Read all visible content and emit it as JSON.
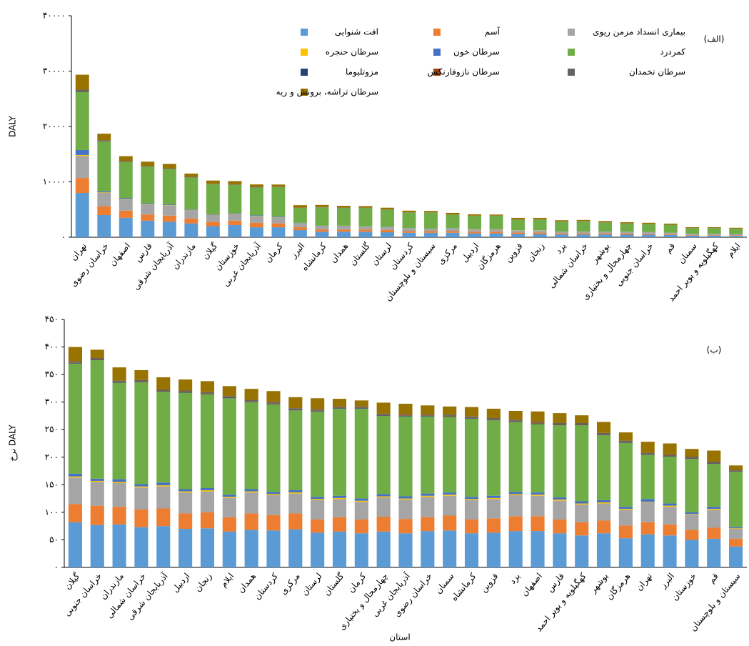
{
  "chart_data": [
    {
      "type": "stacked_bar",
      "annotation": "(الف)",
      "ylabel": "DALY",
      "categories": [
        "تهران",
        "خراسان رضوی",
        "اصفهان",
        "فارس",
        "آذربایجان شرقی",
        "مازندران",
        "گیلان",
        "خوزستان",
        "آذربایجان غربی",
        "کرمان",
        "البرز",
        "کرمانشاه",
        "همدان",
        "گلستان",
        "لرستان",
        "کردستان",
        "سیستان و بلوچستان",
        "مرکزی",
        "اردبیل",
        "هرمزگان",
        "قزوین",
        "زنجان",
        "یزد",
        "خراسان شمالی",
        "بوشهر",
        "چهارمحال و بختیاری",
        "خراسان جنوبی",
        "قم",
        "سمنان",
        "کهگیلویه و بویر احمد",
        "ایلام"
      ],
      "ylim": [
        0,
        40000
      ],
      "yticks": [
        {
          "value": 0,
          "label": "۰"
        },
        {
          "value": 10000,
          "label": "۱۰۰۰۰"
        },
        {
          "value": 20000,
          "label": "۲۰۰۰۰"
        },
        {
          "value": 30000,
          "label": "۳۰۰۰۰"
        },
        {
          "value": 40000,
          "label": "۴۰۰۰۰"
        }
      ],
      "grid": false,
      "series": [
        {
          "name": "افت شنوایی",
          "color": "#5B9BD5",
          "values": [
            8000,
            4000,
            3500,
            3000,
            2800,
            2500,
            2000,
            2200,
            1800,
            1800,
            1300,
            1000,
            1000,
            1000,
            900,
            800,
            800,
            800,
            700,
            700,
            600,
            600,
            500,
            500,
            500,
            450,
            450,
            400,
            300,
            300,
            250
          ]
        },
        {
          "name": "آسم",
          "color": "#ED7D31",
          "values": [
            2700,
            1600,
            1300,
            1100,
            1100,
            900,
            800,
            800,
            800,
            700,
            500,
            400,
            400,
            400,
            400,
            300,
            300,
            300,
            300,
            300,
            250,
            250,
            200,
            200,
            200,
            200,
            150,
            150,
            100,
            100,
            100
          ]
        },
        {
          "name": "بیماری انسداد مزمن ریوی",
          "color": "#A5A5A5",
          "values": [
            4000,
            2400,
            2000,
            1800,
            1800,
            1500,
            1200,
            1200,
            1200,
            1100,
            700,
            600,
            600,
            500,
            500,
            500,
            400,
            500,
            400,
            400,
            350,
            350,
            300,
            300,
            300,
            300,
            300,
            250,
            200,
            200,
            200
          ]
        },
        {
          "name": "سرطان حنجره",
          "color": "#FFC000",
          "values": [
            150,
            100,
            80,
            70,
            70,
            60,
            50,
            50,
            50,
            40,
            30,
            30,
            30,
            30,
            30,
            20,
            20,
            20,
            20,
            20,
            20,
            20,
            10,
            10,
            10,
            10,
            10,
            10,
            10,
            10,
            10
          ]
        },
        {
          "name": "سرطان خون",
          "color": "#4472C4",
          "values": [
            900,
            200,
            200,
            150,
            150,
            120,
            100,
            100,
            100,
            100,
            60,
            50,
            50,
            50,
            50,
            40,
            40,
            40,
            40,
            40,
            30,
            30,
            30,
            30,
            30,
            30,
            20,
            20,
            20,
            20,
            20
          ]
        },
        {
          "name": "کمردرد",
          "color": "#70AD47",
          "values": [
            10500,
            9000,
            6500,
            6600,
            6400,
            5700,
            5400,
            5100,
            5000,
            5300,
            2700,
            3300,
            3200,
            3300,
            3100,
            2800,
            2900,
            2400,
            2400,
            2400,
            1900,
            1950,
            1800,
            1850,
            1600,
            1500,
            1450,
            1400,
            1000,
            1000,
            950
          ]
        },
        {
          "name": "مزوتلیوما",
          "color": "#264478",
          "values": [
            100,
            50,
            40,
            30,
            30,
            30,
            20,
            20,
            20,
            20,
            10,
            10,
            10,
            10,
            10,
            10,
            10,
            10,
            10,
            10,
            10,
            10,
            10,
            10,
            10,
            10,
            10,
            10,
            10,
            10,
            10
          ]
        },
        {
          "name": "سرطان نازوفارنکس",
          "color": "#9E480E",
          "values": [
            100,
            50,
            40,
            30,
            30,
            30,
            20,
            20,
            20,
            20,
            10,
            10,
            10,
            10,
            10,
            10,
            10,
            10,
            10,
            10,
            10,
            10,
            10,
            10,
            10,
            10,
            10,
            10,
            10,
            10,
            10
          ]
        },
        {
          "name": "سرطان تخمدان",
          "color": "#636363",
          "values": [
            200,
            100,
            80,
            70,
            70,
            60,
            50,
            50,
            50,
            40,
            30,
            30,
            30,
            30,
            30,
            20,
            20,
            20,
            20,
            20,
            20,
            20,
            10,
            10,
            10,
            10,
            10,
            10,
            10,
            10,
            10
          ]
        },
        {
          "name": "سرطان تراشه، برونش و ریه",
          "color": "#997300",
          "values": [
            2700,
            1200,
            900,
            800,
            800,
            600,
            600,
            600,
            500,
            400,
            450,
            400,
            350,
            300,
            300,
            300,
            250,
            300,
            250,
            200,
            300,
            250,
            200,
            200,
            250,
            200,
            200,
            200,
            150,
            150,
            150
          ]
        }
      ]
    },
    {
      "type": "stacked_bar",
      "annotation": "(ب)",
      "ylabel": "نرخ DALY",
      "xlabel": "استان",
      "categories": [
        "گیلان",
        "خراسان جنوبی",
        "مازندران",
        "خراسان شمالی",
        "آذربایجان شرقی",
        "اردبیل",
        "زنجان",
        "ایلام",
        "همدان",
        "کردستان",
        "مرکزی",
        "لرستان",
        "گلستان",
        "کرمان",
        "چهارمحال و بختیاری",
        "آذربایجان غربی",
        "خراسان رضوی",
        "سمنان",
        "کرمانشاه",
        "قزوین",
        "یزد",
        "اصفهان",
        "فارس",
        "کهگیلویه و بویر احمد",
        "بوشهر",
        "هرمزگان",
        "تهران",
        "البرز",
        "خوزستان",
        "قم",
        "سیستان و بلوچستان"
      ],
      "ylim": [
        0,
        450
      ],
      "yticks": [
        {
          "value": 0,
          "label": "۰"
        },
        {
          "value": 50,
          "label": "۵۰"
        },
        {
          "value": 100,
          "label": "۱۰۰"
        },
        {
          "value": 150,
          "label": "۱۵۰"
        },
        {
          "value": 200,
          "label": "۲۰۰"
        },
        {
          "value": 250,
          "label": "۲۵۰"
        },
        {
          "value": 300,
          "label": "۳۰۰"
        },
        {
          "value": 350,
          "label": "۳۵۰"
        },
        {
          "value": 400,
          "label": "۴۰۰"
        },
        {
          "value": 450,
          "label": "۴۵۰"
        }
      ],
      "grid": false,
      "series": [
        {
          "color": "#5B9BD5",
          "values": [
            82,
            77,
            78,
            73,
            75,
            70,
            71,
            65,
            68,
            67,
            69,
            63,
            65,
            62,
            65,
            62,
            66,
            67,
            62,
            63,
            66,
            66,
            62,
            58,
            62,
            53,
            60,
            58,
            50,
            52,
            38
          ]
        },
        {
          "color": "#ED7D31",
          "values": [
            33,
            35,
            32,
            32,
            32,
            28,
            29,
            26,
            30,
            28,
            29,
            24,
            26,
            25,
            27,
            26,
            25,
            27,
            25,
            26,
            27,
            27,
            25,
            24,
            23,
            23,
            22,
            20,
            18,
            20,
            14
          ]
        },
        {
          "color": "#A5A5A5",
          "values": [
            48,
            43,
            43,
            40,
            40,
            38,
            38,
            35,
            38,
            36,
            36,
            35,
            33,
            32,
            35,
            35,
            37,
            36,
            35,
            35,
            38,
            37,
            34,
            32,
            31,
            28,
            36,
            32,
            28,
            32,
            18
          ]
        },
        {
          "color": "#FFC000",
          "values": [
            2,
            2,
            2,
            2,
            2,
            2,
            2,
            2,
            2,
            2,
            2,
            2,
            2,
            2,
            2,
            2,
            2,
            2,
            2,
            2,
            2,
            2,
            2,
            2,
            2,
            2,
            1,
            2,
            1,
            2,
            1
          ]
        },
        {
          "color": "#4472C4",
          "values": [
            5,
            4,
            5,
            4,
            5,
            4,
            4,
            4,
            4,
            4,
            4,
            4,
            4,
            4,
            4,
            4,
            4,
            4,
            4,
            4,
            4,
            4,
            4,
            4,
            4,
            4,
            5,
            4,
            3,
            4,
            2
          ]
        },
        {
          "color": "#70AD47",
          "values": [
            200,
            215,
            175,
            185,
            165,
            175,
            170,
            175,
            158,
            159,
            145,
            155,
            158,
            163,
            142,
            145,
            140,
            137,
            142,
            137,
            127,
            124,
            131,
            138,
            118,
            116,
            80,
            85,
            97,
            78,
            101
          ]
        },
        {
          "color": "#264478",
          "values": [
            1,
            1,
            1,
            1,
            1,
            1,
            1,
            1,
            1,
            1,
            1,
            1,
            1,
            1,
            1,
            1,
            1,
            1,
            1,
            1,
            1,
            1,
            1,
            1,
            1,
            1,
            1,
            1,
            1,
            1,
            1
          ]
        },
        {
          "color": "#9E480E",
          "values": [
            1,
            1,
            1,
            1,
            1,
            1,
            1,
            1,
            1,
            1,
            1,
            1,
            1,
            1,
            1,
            1,
            1,
            1,
            1,
            1,
            1,
            1,
            1,
            1,
            1,
            1,
            1,
            1,
            1,
            1,
            1
          ]
        },
        {
          "color": "#636363",
          "values": [
            2,
            2,
            2,
            2,
            2,
            2,
            2,
            2,
            2,
            2,
            2,
            2,
            2,
            2,
            2,
            2,
            2,
            2,
            2,
            2,
            2,
            2,
            2,
            2,
            2,
            2,
            2,
            2,
            2,
            2,
            1
          ]
        },
        {
          "color": "#997300",
          "values": [
            26,
            15,
            24,
            18,
            22,
            20,
            20,
            18,
            20,
            20,
            20,
            20,
            14,
            11,
            20,
            19,
            16,
            15,
            17,
            17,
            16,
            19,
            18,
            14,
            20,
            15,
            20,
            20,
            14,
            20,
            8
          ]
        }
      ]
    }
  ]
}
